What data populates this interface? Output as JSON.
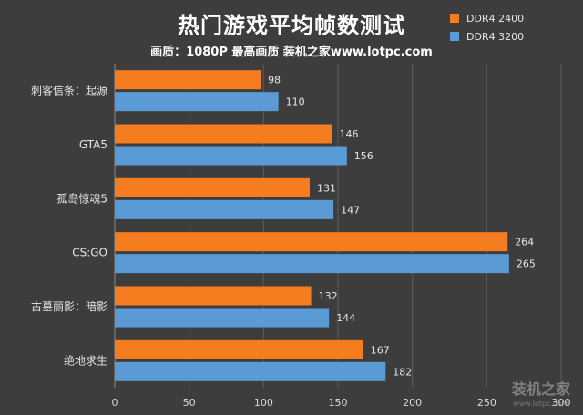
{
  "chart_data": {
    "type": "bar",
    "orientation": "horizontal",
    "title": "热门游戏平均帧数测试",
    "subtitle": "画质：1080P 最高画质 装机之家www.lotpc.com",
    "categories": [
      "刺客信条：起源",
      "GTA5",
      "孤岛惊魂5",
      "CS:GO",
      "古墓丽影：暗影",
      "绝地求生"
    ],
    "series": [
      {
        "name": "DDR4 2400",
        "color": "#f57c1f",
        "values": [
          98,
          146,
          131,
          264,
          132,
          167
        ]
      },
      {
        "name": "DDR4 3200",
        "color": "#5b9bd5",
        "values": [
          110,
          156,
          147,
          265,
          144,
          182
        ]
      }
    ],
    "xlim": [
      0,
      300
    ],
    "x_ticks": [
      0,
      50,
      100,
      150,
      200,
      250,
      300
    ],
    "legend_position": "top-right",
    "grid": true
  },
  "watermark": {
    "text": "装机之家",
    "url": "www.lotpc.com"
  }
}
